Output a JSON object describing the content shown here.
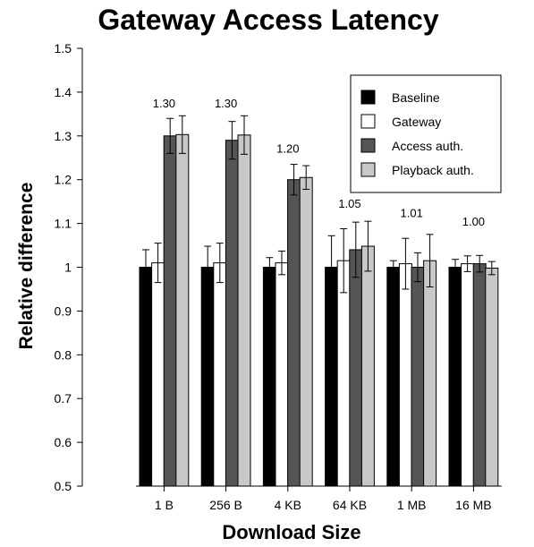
{
  "chart_data": {
    "type": "bar",
    "title": "Gateway Access Latency",
    "xlabel": "Download Size",
    "ylabel": "Relative difference",
    "ylim": [
      0.5,
      1.5
    ],
    "yticks": [
      0.5,
      0.6,
      0.7,
      0.8,
      0.9,
      1,
      1.1,
      1.2,
      1.3,
      1.4,
      1.5
    ],
    "ytick_labels": [
      "0.5",
      "0.6",
      "0.7",
      "0.8",
      "0.9",
      "1",
      "1.1",
      "1.2",
      "1.3",
      "1.4",
      "1.5"
    ],
    "categories": [
      "1 B",
      "256 B",
      "4 KB",
      "64 KB",
      "1 MB",
      "16 MB"
    ],
    "grid": false,
    "legend_position": "top-right",
    "series": [
      {
        "name": "Baseline",
        "color": "#000000",
        "values": [
          1.0,
          1.0,
          1.0,
          1.0,
          1.0,
          1.0
        ],
        "errors": [
          0.04,
          0.048,
          0.022,
          0.072,
          0.015,
          0.018
        ]
      },
      {
        "name": "Gateway",
        "color": "#ffffff",
        "values": [
          1.01,
          1.01,
          1.01,
          1.015,
          1.008,
          1.008
        ],
        "errors": [
          0.045,
          0.045,
          0.027,
          0.073,
          0.058,
          0.018
        ]
      },
      {
        "name": "Access auth.",
        "color": "#555555",
        "values": [
          1.3,
          1.29,
          1.2,
          1.04,
          1.0,
          1.008
        ],
        "errors": [
          0.04,
          0.043,
          0.035,
          0.063,
          0.033,
          0.019
        ]
      },
      {
        "name": "Playback auth.",
        "color": "#c8c8c8",
        "values": [
          1.303,
          1.302,
          1.205,
          1.048,
          1.015,
          0.998
        ],
        "errors": [
          0.043,
          0.044,
          0.027,
          0.057,
          0.06,
          0.015
        ]
      }
    ],
    "annotations": [
      "1.30",
      "1.30",
      "1.20",
      "1.05",
      "1.01",
      "1.00"
    ],
    "annotation_values": [
      1.365,
      1.365,
      1.262,
      1.136,
      1.115,
      1.095
    ]
  }
}
